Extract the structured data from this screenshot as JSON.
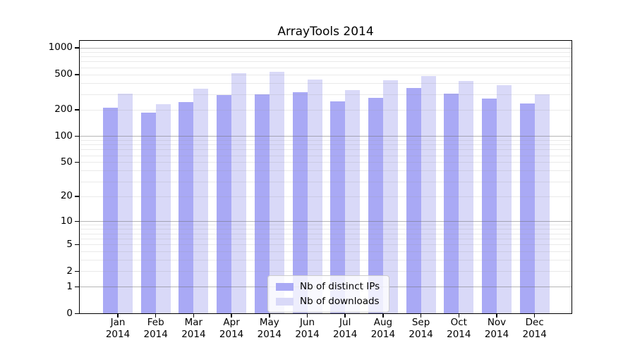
{
  "chart_data": {
    "type": "bar",
    "title": "ArrayTools 2014",
    "categories": [
      "Jan",
      "Feb",
      "Mar",
      "Apr",
      "May",
      "Jun",
      "Jul",
      "Aug",
      "Sep",
      "Oct",
      "Nov",
      "Dec"
    ],
    "category_year": "2014",
    "series": [
      {
        "name": "Nb of distinct IPs",
        "color": "#a9a9f5",
        "values": [
          208,
          184,
          243,
          290,
          296,
          313,
          249,
          273,
          353,
          302,
          268,
          234
        ]
      },
      {
        "name": "Nb of downloads",
        "color": "#d9d9f8",
        "values": [
          305,
          232,
          344,
          512,
          540,
          436,
          332,
          427,
          480,
          418,
          375,
          300
        ]
      }
    ],
    "yscale": "log1p",
    "ylim": [
      0,
      1200
    ],
    "yticks": [
      0,
      1,
      2,
      5,
      10,
      20,
      50,
      100,
      200,
      500,
      1000
    ],
    "grid_major": [
      1,
      10,
      100,
      1000
    ],
    "grid_minor_mantissas": [
      2,
      3,
      4,
      5,
      6,
      7,
      8,
      9
    ],
    "legend_position": "inside-bottom-center",
    "colors": {
      "grid_major": "rgba(110,110,110,0.50)",
      "grid_minor": "rgba(150,150,150,0.20)",
      "spine": "#000000",
      "legend_border": "#cccccc"
    }
  }
}
